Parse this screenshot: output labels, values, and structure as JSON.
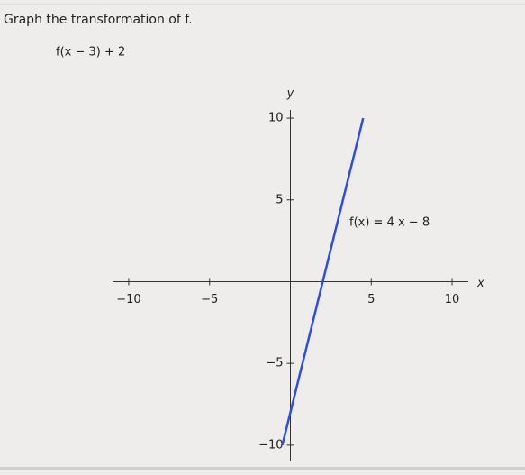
{
  "chart_data": {
    "type": "line",
    "title": "Graph the transformation of f.",
    "subtitle": "f(x − 3) + 2",
    "x_label": "x",
    "y_label": "y",
    "annotation": "f(x) = 4 x − 8",
    "x": [
      -0.5,
      4.5
    ],
    "series": [
      {
        "name": "f(x) = 4x − 8",
        "color": "#2f4fd6",
        "values": [
          -10,
          10
        ]
      }
    ],
    "xlim": [
      -11,
      11
    ],
    "ylim": [
      -11,
      10.5
    ],
    "xticks": [
      {
        "value": -10,
        "label": "−10"
      },
      {
        "value": -5,
        "label": "−5"
      },
      5,
      10
    ],
    "yticks": [
      {
        "value": -10,
        "label": "−10"
      },
      {
        "value": -5,
        "label": "−5"
      },
      5,
      10
    ],
    "grid": false
  }
}
